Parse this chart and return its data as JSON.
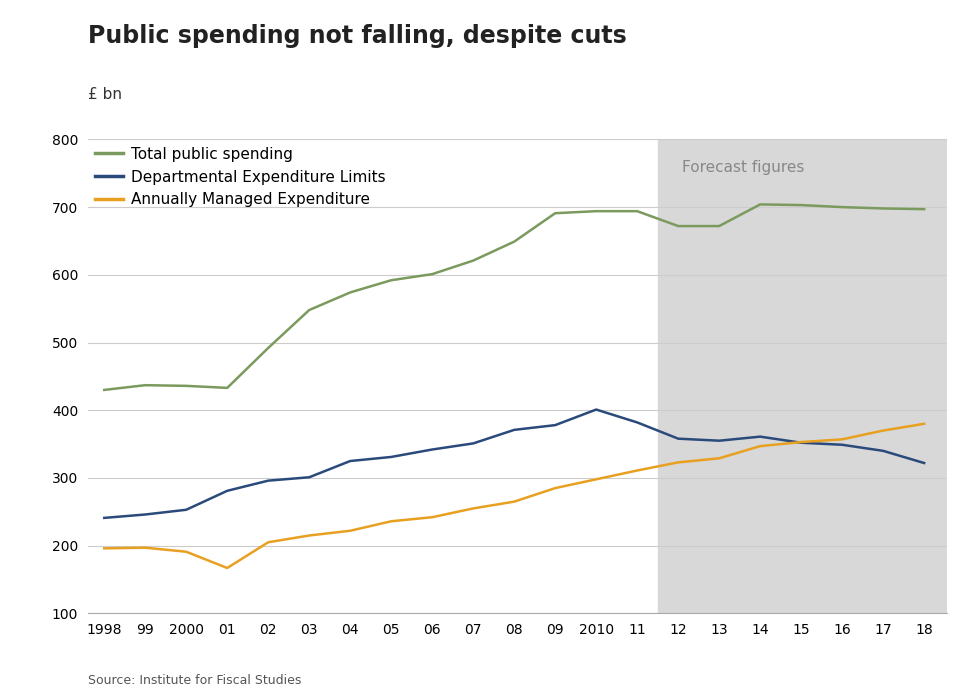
{
  "title": "Public spending not falling, despite cuts",
  "ylabel": "£ bn",
  "source": "Source: Institute for Fiscal Studies",
  "forecast_label": "Forecast figures",
  "forecast_start": 2011.5,
  "ylim": [
    100,
    800
  ],
  "yticks": [
    100,
    200,
    300,
    400,
    500,
    600,
    700,
    800
  ],
  "xtick_labels": [
    "1998",
    "99",
    "2000",
    "01",
    "02",
    "03",
    "04",
    "05",
    "06",
    "07",
    "08",
    "09",
    "2010",
    "11",
    "12",
    "13",
    "14",
    "15",
    "16",
    "17",
    "18"
  ],
  "xtick_positions": [
    1998,
    1999,
    2000,
    2001,
    2002,
    2003,
    2004,
    2005,
    2006,
    2007,
    2008,
    2009,
    2010,
    2011,
    2012,
    2013,
    2014,
    2015,
    2016,
    2017,
    2018
  ],
  "total_spending": {
    "label": "Total public spending",
    "color": "#7a9a5e",
    "x": [
      1998,
      1999,
      2000,
      2001,
      2002,
      2003,
      2004,
      2005,
      2006,
      2007,
      2008,
      2009,
      2010,
      2011,
      2012,
      2013,
      2014,
      2015,
      2016,
      2017,
      2018
    ],
    "y": [
      430,
      437,
      436,
      433,
      492,
      548,
      574,
      592,
      601,
      621,
      649,
      691,
      694,
      694,
      672,
      672,
      704,
      703,
      700,
      698,
      697
    ]
  },
  "del": {
    "label": "Departmental Expenditure Limits",
    "color": "#2b4a7c",
    "x": [
      1998,
      1999,
      2000,
      2001,
      2002,
      2003,
      2004,
      2005,
      2006,
      2007,
      2008,
      2009,
      2010,
      2011,
      2012,
      2013,
      2014,
      2015,
      2016,
      2017,
      2018
    ],
    "y": [
      241,
      246,
      253,
      281,
      296,
      301,
      325,
      331,
      342,
      351,
      371,
      378,
      401,
      382,
      358,
      355,
      361,
      352,
      349,
      340,
      322
    ]
  },
  "ame": {
    "label": "Annually Managed Expenditure",
    "color": "#e8a020",
    "x": [
      1998,
      1999,
      2000,
      2001,
      2002,
      2003,
      2004,
      2005,
      2006,
      2007,
      2008,
      2009,
      2010,
      2011,
      2012,
      2013,
      2014,
      2015,
      2016,
      2017,
      2018
    ],
    "y": [
      196,
      197,
      191,
      167,
      205,
      215,
      222,
      236,
      242,
      255,
      265,
      285,
      298,
      311,
      323,
      329,
      347,
      353,
      357,
      370,
      380
    ]
  },
  "background_color": "#ffffff",
  "forecast_bg_color": "#d8d8d8",
  "grid_color": "#cccccc",
  "title_fontsize": 17,
  "axis_label_fontsize": 11,
  "legend_fontsize": 11,
  "tick_fontsize": 10,
  "source_fontsize": 9
}
